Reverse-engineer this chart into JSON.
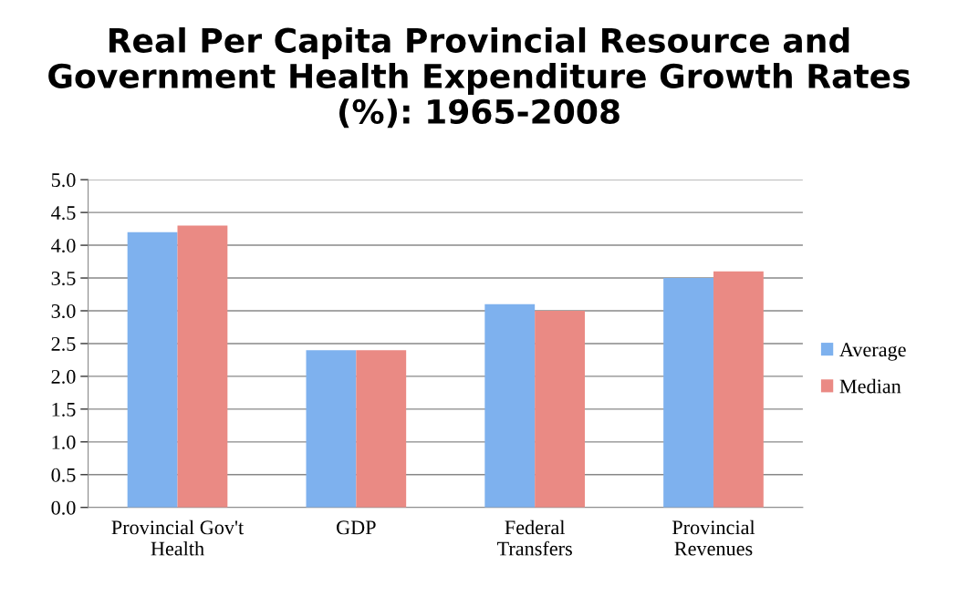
{
  "chart_data": {
    "type": "bar",
    "title": "Real Per Capita Provincial Resource and\nGovernment Health Expenditure Growth Rates\n(%): 1965-2008",
    "categories": [
      "Provincial Gov't\nHealth",
      "GDP",
      "Federal\nTransfers",
      "Provincial\nRevenues"
    ],
    "series": [
      {
        "name": "Average",
        "color": "#7eb1ee",
        "values": [
          4.2,
          2.4,
          3.1,
          3.5
        ]
      },
      {
        "name": "Median",
        "color": "#ea8a84",
        "values": [
          4.3,
          2.4,
          3.0,
          3.6
        ]
      }
    ],
    "ylim": [
      0,
      5
    ],
    "yticks": [
      {
        "value": 0,
        "label": "0.0"
      },
      {
        "value": 0.5,
        "label": "0.5"
      },
      {
        "value": 1,
        "label": "1.0"
      },
      {
        "value": 1.5,
        "label": "1.5"
      },
      {
        "value": 2,
        "label": "2.0"
      },
      {
        "value": 2.5,
        "label": "2.5"
      },
      {
        "value": 3,
        "label": "3.0"
      },
      {
        "value": 3.5,
        "label": "3.5"
      },
      {
        "value": 4,
        "label": "4.0"
      },
      {
        "value": 4.5,
        "label": "4.5"
      },
      {
        "value": 5,
        "label": "5.0"
      }
    ],
    "grid": "y",
    "legend": "right"
  }
}
